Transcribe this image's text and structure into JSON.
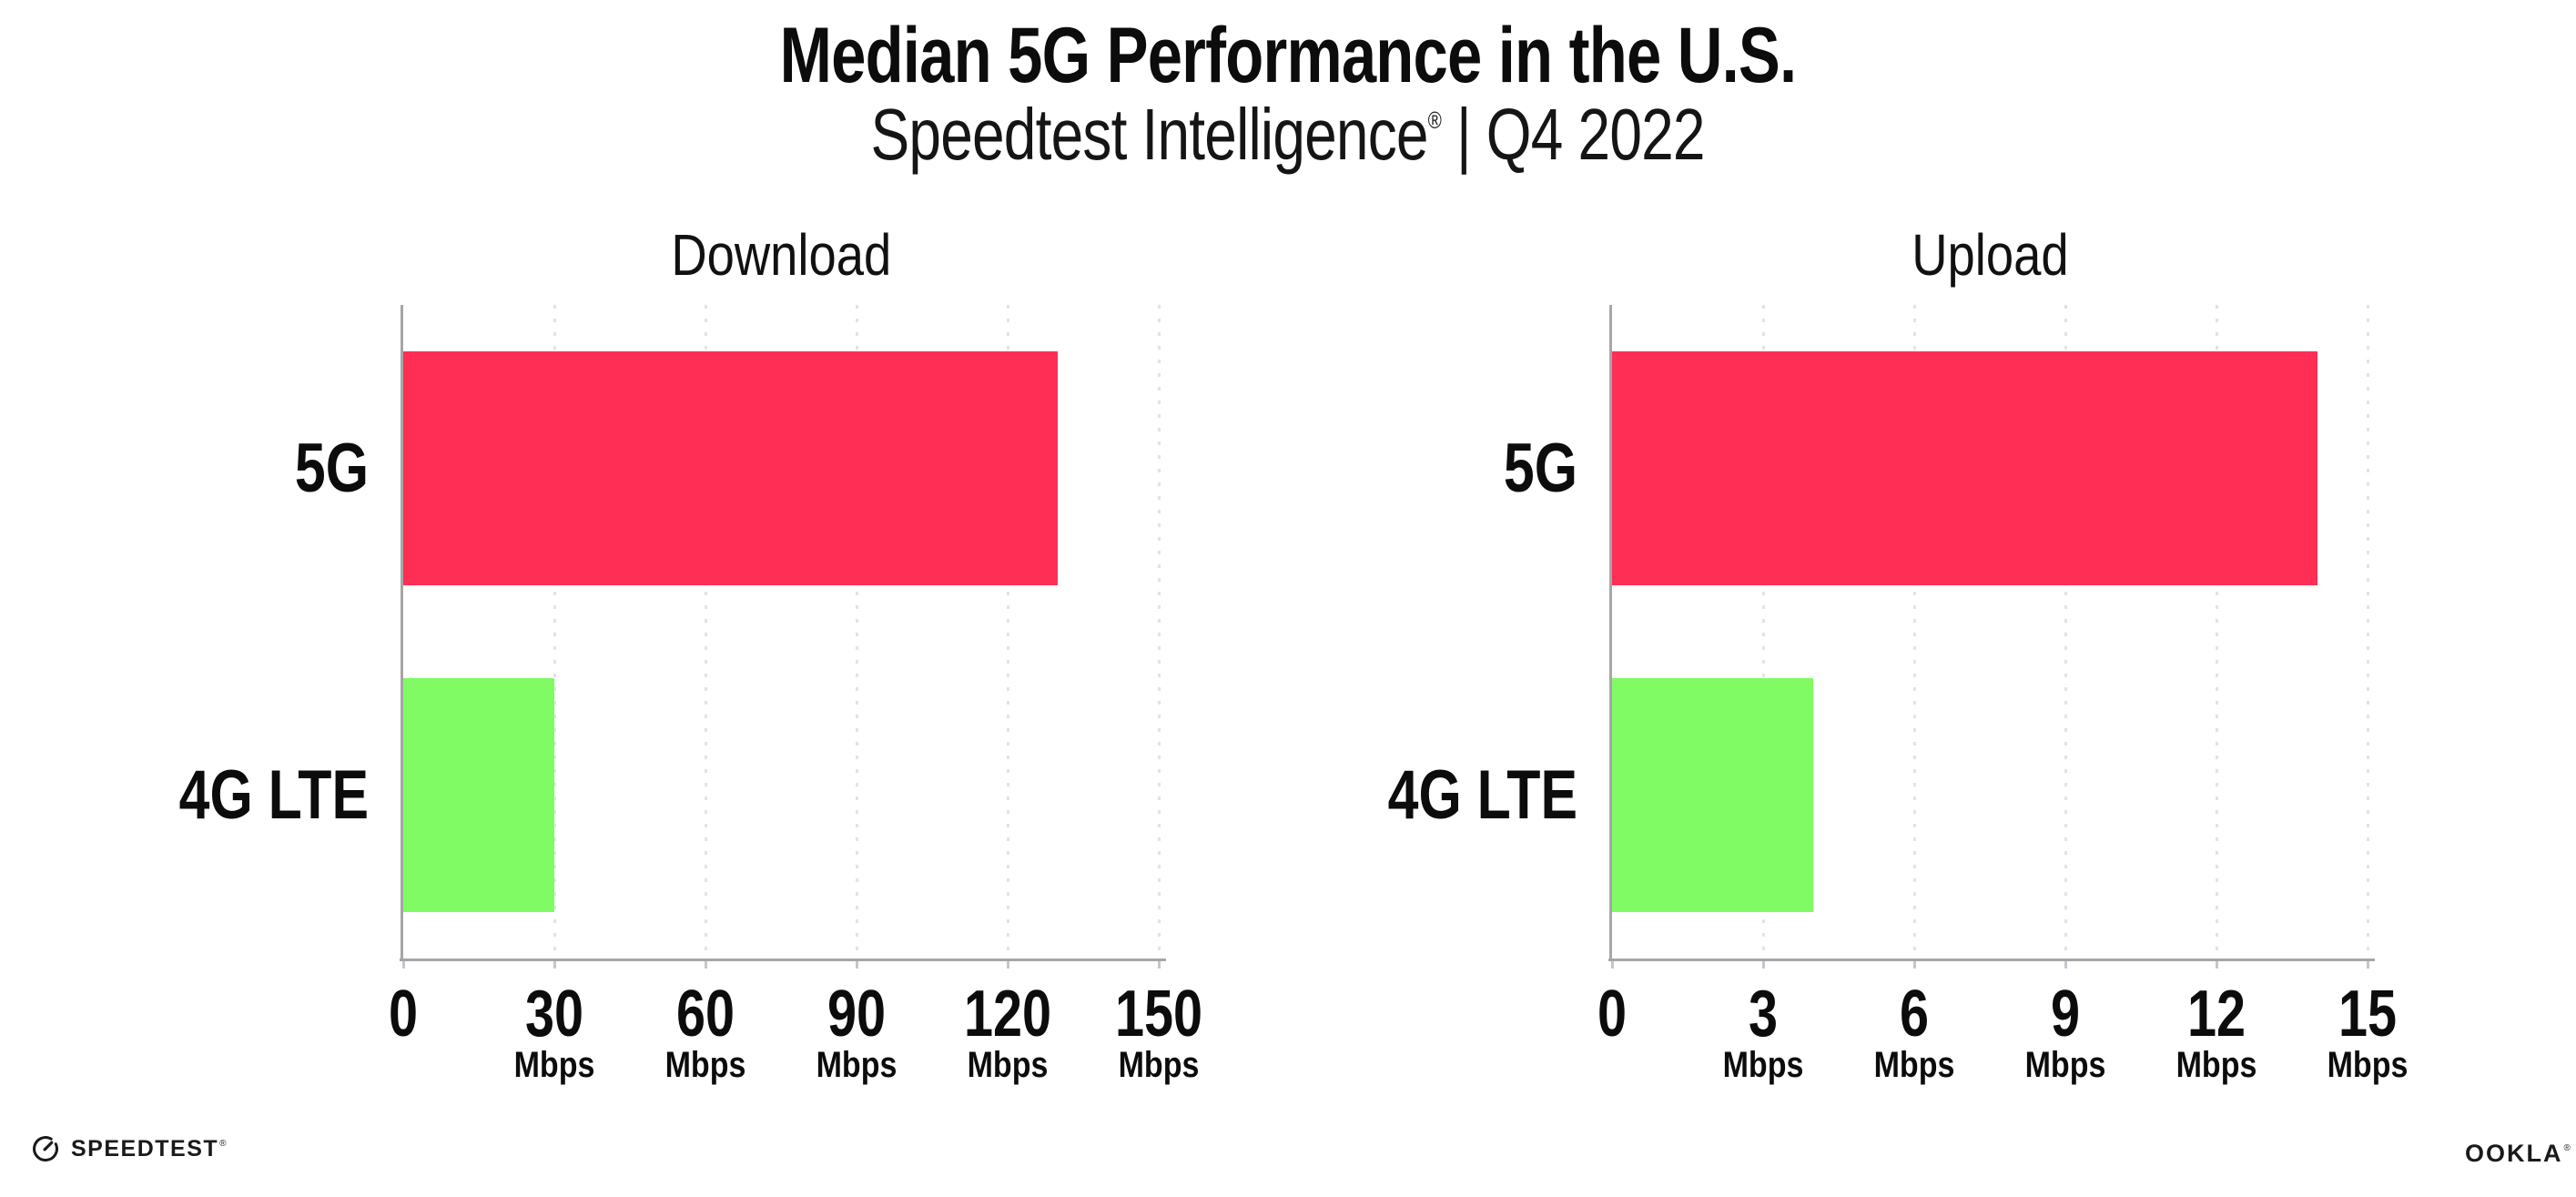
{
  "header": {
    "title": "Median 5G Performance in the U.S.",
    "subtitle_brand": "Speedtest Intelligence",
    "subtitle_reg": "®",
    "subtitle_rest": " | Q4 2022"
  },
  "footer": {
    "speedtest_label": "SPEEDTEST",
    "speedtest_reg": "®",
    "speedtest_icon": "gauge-icon",
    "ookla_label": "OOKLA",
    "ookla_reg": "®"
  },
  "colors": {
    "bar_5g": "#ff2e55",
    "bar_4g_lte": "#80fb64",
    "axis": "#a6a6a6",
    "gridline": "#e2e2ec",
    "text": "#0c0c0c"
  },
  "chart_data": [
    {
      "type": "bar",
      "orientation": "horizontal",
      "title": "Download",
      "categories": [
        "5G",
        "4G LTE"
      ],
      "values": [
        130,
        30
      ],
      "unit": "Mbps",
      "xlim": [
        0,
        150
      ],
      "xticks": [
        0,
        30,
        60,
        90,
        120,
        150
      ],
      "grid": true,
      "legend": false,
      "bar_colors": [
        "#ff2e55",
        "#80fb64"
      ]
    },
    {
      "type": "bar",
      "orientation": "horizontal",
      "title": "Upload",
      "categories": [
        "5G",
        "4G LTE"
      ],
      "values": [
        14,
        4
      ],
      "unit": "Mbps",
      "xlim": [
        0,
        15
      ],
      "xticks": [
        0,
        3,
        6,
        9,
        12,
        15
      ],
      "grid": true,
      "legend": false,
      "bar_colors": [
        "#ff2e55",
        "#80fb64"
      ]
    }
  ]
}
